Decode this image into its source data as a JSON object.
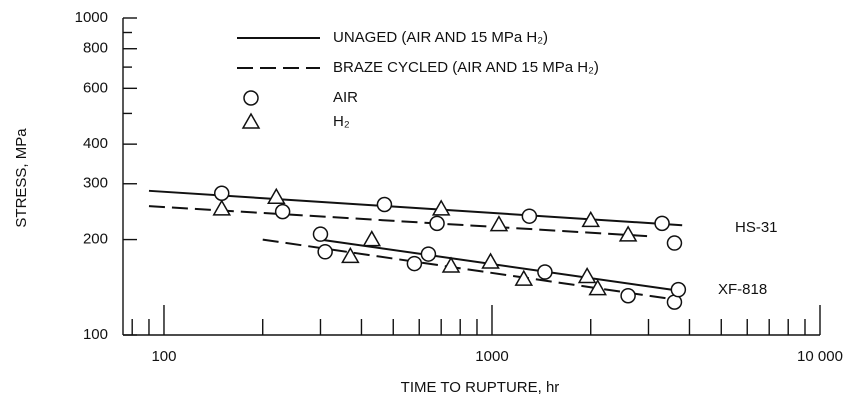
{
  "chart_data": {
    "type": "scatter",
    "xlabel": "TIME TO RUPTURE, hr",
    "ylabel": "STRESS, MPa",
    "xscale": "log",
    "yscale": "log",
    "xlim": [
      75,
      10000
    ],
    "ylim": [
      100,
      1000
    ],
    "xticks": [
      100,
      1000,
      {
        "value": 10000,
        "label": "10 000"
      }
    ],
    "yticks": [
      100,
      200,
      300,
      400,
      600,
      800,
      1000
    ],
    "xminorticks": [
      80,
      90,
      200,
      300,
      400,
      500,
      600,
      700,
      800,
      900,
      2000,
      3000,
      4000,
      5000,
      6000,
      7000,
      8000,
      9000
    ],
    "yminorticks": [
      500,
      700,
      900
    ],
    "legend": [
      {
        "label": "UNAGED (AIR AND 15 MPa H₂)",
        "kind": "solid"
      },
      {
        "label": "BRAZE CYCLED (AIR AND 15 MPa H₂)",
        "kind": "dashed"
      },
      {
        "label": "AIR",
        "kind": "circle"
      },
      {
        "label": "H₂",
        "kind": "triangle"
      }
    ],
    "annotations": [
      "HS-31",
      "XF-818"
    ],
    "lines": [
      {
        "style": "solid",
        "x": [
          90,
          3800
        ],
        "values": [
          285,
          222
        ]
      },
      {
        "style": "dashed",
        "x": [
          90,
          3000
        ],
        "values": [
          255,
          205
        ]
      },
      {
        "style": "solid",
        "x": [
          300,
          3700
        ],
        "values": [
          200,
          138
        ]
      },
      {
        "style": "dashed",
        "x": [
          200,
          3500
        ],
        "values": [
          200,
          130
        ]
      }
    ],
    "points": [
      {
        "marker": "circle",
        "x": [
          150,
          230,
          470,
          680,
          1300,
          3300,
          3600
        ],
        "values": [
          280,
          245,
          258,
          225,
          237,
          225,
          195
        ]
      },
      {
        "marker": "triangle",
        "x": [
          150,
          220,
          700,
          1050,
          2000,
          2600
        ],
        "values": [
          250,
          272,
          250,
          223,
          230,
          207
        ]
      },
      {
        "marker": "circle",
        "x": [
          300,
          310,
          580,
          640,
          1450,
          2600,
          3600,
          3700
        ],
        "values": [
          208,
          183,
          168,
          180,
          158,
          133,
          127,
          139
        ]
      },
      {
        "marker": "triangle",
        "x": [
          370,
          430,
          750,
          990,
          1250,
          1950,
          2100
        ],
        "values": [
          177,
          200,
          165,
          170,
          150,
          153,
          140
        ]
      }
    ]
  }
}
